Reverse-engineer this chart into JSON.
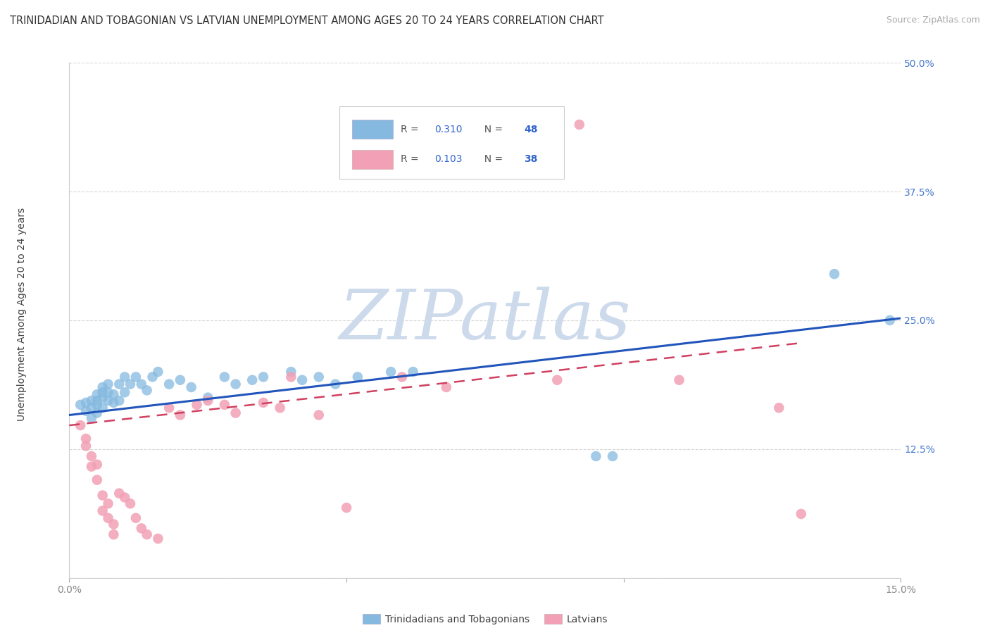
{
  "title": "TRINIDADIAN AND TOBAGONIAN VS LATVIAN UNEMPLOYMENT AMONG AGES 20 TO 24 YEARS CORRELATION CHART",
  "source": "Source: ZipAtlas.com",
  "ylabel": "Unemployment Among Ages 20 to 24 years",
  "xlim": [
    0.0,
    0.15
  ],
  "ylim": [
    0.0,
    0.5
  ],
  "xticks": [
    0.0,
    0.05,
    0.1,
    0.15
  ],
  "yticks": [
    0.0,
    0.125,
    0.25,
    0.375,
    0.5
  ],
  "background_color": "#ffffff",
  "grid_color": "#d8d8d8",
  "watermark_text": "ZIPatlas",
  "watermark_color": "#ccdaec",
  "blue_color": "#85b9e0",
  "pink_color": "#f2a0b5",
  "blue_line_color": "#2255bb",
  "pink_line_color": "#d04060",
  "legend_R1": "0.310",
  "legend_N1": "48",
  "legend_R2": "0.103",
  "legend_N2": "38",
  "legend_label1": "Trinidadians and Tobagonians",
  "legend_label2": "Latvians",
  "title_fontsize": 10.5,
  "source_fontsize": 9,
  "ylabel_fontsize": 10,
  "tick_fontsize": 10,
  "legend_text_fontsize": 10,
  "blue_scatter_x": [
    0.002,
    0.003,
    0.003,
    0.004,
    0.004,
    0.004,
    0.005,
    0.005,
    0.005,
    0.005,
    0.006,
    0.006,
    0.006,
    0.006,
    0.007,
    0.007,
    0.007,
    0.008,
    0.008,
    0.009,
    0.009,
    0.01,
    0.01,
    0.011,
    0.012,
    0.013,
    0.014,
    0.015,
    0.016,
    0.018,
    0.02,
    0.022,
    0.025,
    0.028,
    0.03,
    0.033,
    0.035,
    0.04,
    0.042,
    0.045,
    0.048,
    0.052,
    0.058,
    0.062,
    0.095,
    0.098,
    0.138,
    0.148
  ],
  "blue_scatter_y": [
    0.168,
    0.162,
    0.17,
    0.155,
    0.165,
    0.172,
    0.16,
    0.168,
    0.172,
    0.178,
    0.165,
    0.175,
    0.18,
    0.185,
    0.172,
    0.18,
    0.188,
    0.17,
    0.178,
    0.172,
    0.188,
    0.18,
    0.195,
    0.188,
    0.195,
    0.188,
    0.182,
    0.195,
    0.2,
    0.188,
    0.192,
    0.185,
    0.175,
    0.195,
    0.188,
    0.192,
    0.195,
    0.2,
    0.192,
    0.195,
    0.188,
    0.195,
    0.2,
    0.2,
    0.118,
    0.118,
    0.295,
    0.25
  ],
  "pink_scatter_x": [
    0.002,
    0.003,
    0.003,
    0.004,
    0.004,
    0.005,
    0.005,
    0.006,
    0.006,
    0.007,
    0.007,
    0.008,
    0.008,
    0.009,
    0.01,
    0.011,
    0.012,
    0.013,
    0.014,
    0.016,
    0.018,
    0.02,
    0.023,
    0.025,
    0.028,
    0.03,
    0.035,
    0.038,
    0.04,
    0.045,
    0.05,
    0.06,
    0.068,
    0.088,
    0.092,
    0.11,
    0.128,
    0.132
  ],
  "pink_scatter_y": [
    0.148,
    0.135,
    0.128,
    0.118,
    0.108,
    0.095,
    0.11,
    0.08,
    0.065,
    0.058,
    0.072,
    0.052,
    0.042,
    0.082,
    0.078,
    0.072,
    0.058,
    0.048,
    0.042,
    0.038,
    0.165,
    0.158,
    0.168,
    0.172,
    0.168,
    0.16,
    0.17,
    0.165,
    0.195,
    0.158,
    0.068,
    0.195,
    0.185,
    0.192,
    0.44,
    0.192,
    0.165,
    0.062
  ],
  "blue_line_x": [
    0.0,
    0.15
  ],
  "blue_line_y": [
    0.158,
    0.252
  ],
  "pink_line_x": [
    0.0,
    0.132
  ],
  "pink_line_y": [
    0.148,
    0.228
  ]
}
